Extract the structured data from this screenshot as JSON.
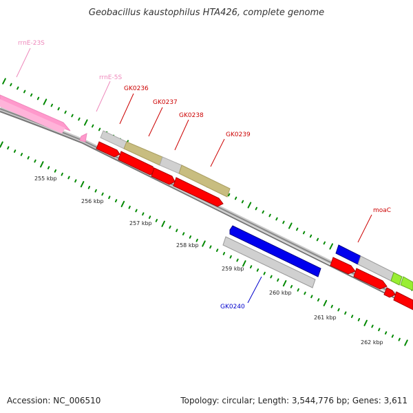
{
  "title": "Geobacillus kaustophilus HTA426, complete genome",
  "footer": {
    "accession": "Accession: NC_006510",
    "summary": "Topology: circular; Length: 3,544,776 bp; Genes: 3,611"
  },
  "ticks": [
    "255 kbp",
    "256 kbp",
    "257 kbp",
    "258 kbp",
    "259 kbp",
    "260 kbp",
    "261 kbp",
    "262 kbp"
  ],
  "features": {
    "rrnE23S": "rrnE-23S",
    "rrnE5S": "rrnE-5S",
    "gk0236": "GK0236",
    "gk0237": "GK0237",
    "gk0238": "GK0238",
    "gk0239": "GK0239",
    "gk0240": "GK0240",
    "moaC": "moaC"
  },
  "colors": {
    "rrna": "#ff99cc",
    "rrna_label": "#ee88bb",
    "gene_label": "#cc0000",
    "gene_label_blue": "#0000cc",
    "cds_red": "#ff0000",
    "cds_blue": "#0000ee",
    "cds_gray": "#c8c8c8",
    "cds_olive": "#c8bd80",
    "cds_green": "#99ee33",
    "backbone": "#888888",
    "ticks": "#008800"
  }
}
